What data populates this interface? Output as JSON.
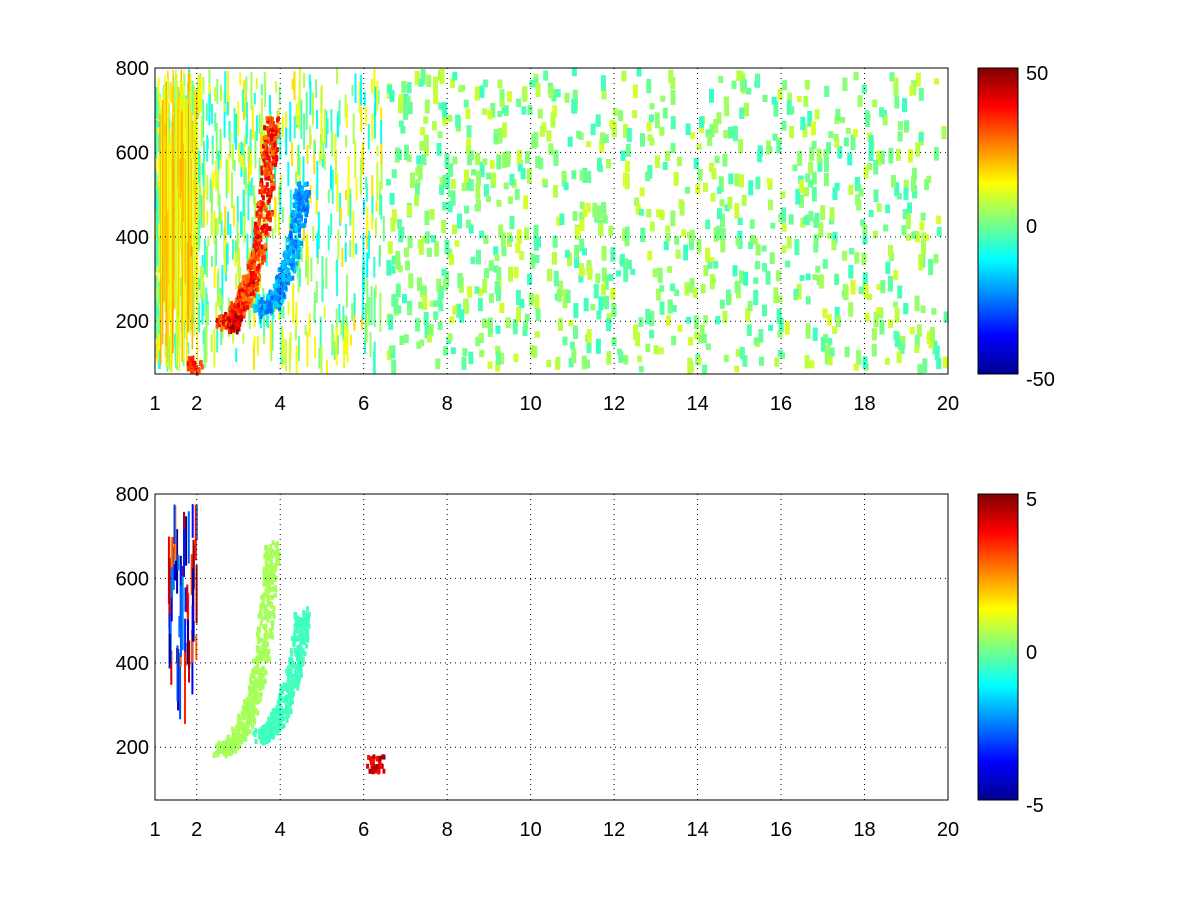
{
  "chart_data": [
    {
      "type": "heatmap",
      "title": "",
      "xlabel": "",
      "ylabel": "",
      "xlim": [
        1,
        20
      ],
      "ylim": [
        75,
        800
      ],
      "x_ticks": [
        "1",
        "2",
        "4",
        "6",
        "8",
        "10",
        "12",
        "14",
        "16",
        "18",
        "20"
      ],
      "y_ticks": [
        "200",
        "400",
        "600",
        "800"
      ],
      "grid": true,
      "colormap": "jet",
      "colorbar": {
        "range": [
          -50,
          50
        ],
        "ticks": [
          "50",
          "0",
          "-50"
        ]
      },
      "features": [
        {
          "name": "ridge",
          "points": [
            [
              2.55,
              200
            ],
            [
              2.8,
              210
            ],
            [
              3.05,
              245
            ],
            [
              3.25,
              295
            ],
            [
              3.45,
              370
            ],
            [
              3.6,
              470
            ],
            [
              3.72,
              600
            ],
            [
              3.78,
              680
            ]
          ],
          "value": 42
        },
        {
          "name": "ridge",
          "points": [
            [
              3.5,
              230
            ],
            [
              3.8,
              250
            ],
            [
              4.05,
              300
            ],
            [
              4.3,
              380
            ],
            [
              4.45,
              470
            ],
            [
              4.5,
              520
            ]
          ],
          "value": -28
        },
        {
          "name": "blob",
          "x": 2.85,
          "y": 200,
          "value": 50
        },
        {
          "name": "blob",
          "x": 1.95,
          "y": 100,
          "value": 40
        }
      ]
    },
    {
      "type": "heatmap",
      "title": "",
      "xlabel": "",
      "ylabel": "",
      "xlim": [
        1,
        20
      ],
      "ylim": [
        75,
        800
      ],
      "x_ticks": [
        "1",
        "2",
        "4",
        "6",
        "8",
        "10",
        "12",
        "14",
        "16",
        "18",
        "20"
      ],
      "y_ticks": [
        "200",
        "400",
        "600",
        "800"
      ],
      "grid": true,
      "colormap": "jet",
      "colorbar": {
        "range": [
          -5,
          5
        ],
        "ticks": [
          "5",
          "0",
          "-5"
        ]
      },
      "features": [
        {
          "name": "ridge",
          "points": [
            [
              2.55,
              200
            ],
            [
              2.8,
              210
            ],
            [
              3.05,
              245
            ],
            [
              3.25,
              295
            ],
            [
              3.45,
              370
            ],
            [
              3.6,
              470
            ],
            [
              3.72,
              600
            ],
            [
              3.78,
              680
            ]
          ],
          "value": 0.5
        },
        {
          "name": "ridge",
          "points": [
            [
              3.5,
              230
            ],
            [
              3.8,
              250
            ],
            [
              4.05,
              300
            ],
            [
              4.3,
              380
            ],
            [
              4.45,
              470
            ],
            [
              4.5,
              520
            ]
          ],
          "value": -0.8
        },
        {
          "name": "spot",
          "x": 6.25,
          "y": 165,
          "value": 5
        }
      ]
    }
  ]
}
